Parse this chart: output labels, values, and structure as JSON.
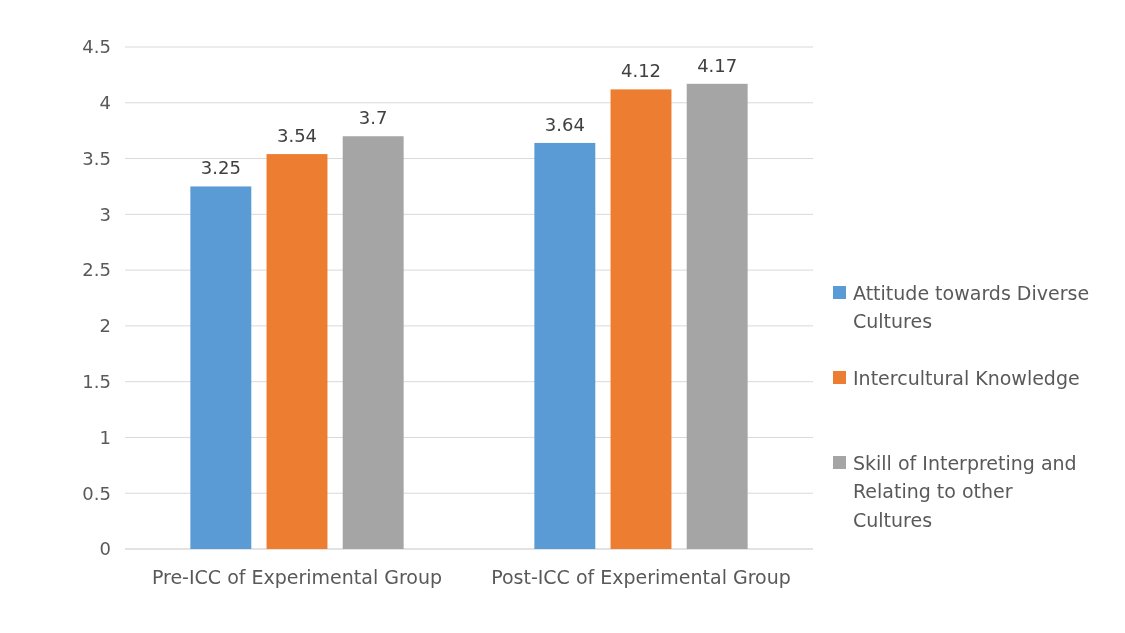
{
  "chart_data": {
    "type": "bar",
    "categories": [
      "Pre-ICC of Experimental Group",
      "Post-ICC of Experimental Group"
    ],
    "series": [
      {
        "name": "Attitude towards Diverse Cultures",
        "color": "#5b9bd5",
        "values": [
          3.25,
          3.64
        ]
      },
      {
        "name": "Intercultural Knowledge",
        "color": "#ed7d31",
        "values": [
          3.54,
          4.12
        ]
      },
      {
        "name": "Skill of Interpreting and Relating to other Cultures",
        "color": "#a5a5a5",
        "values": [
          3.7,
          4.17
        ]
      }
    ],
    "ylim": [
      0,
      4.5
    ],
    "yticks": [
      0,
      0.5,
      1,
      1.5,
      2,
      2.5,
      3,
      3.5,
      4,
      4.5
    ],
    "grid": "y",
    "legend": "right",
    "data_labels": true
  }
}
